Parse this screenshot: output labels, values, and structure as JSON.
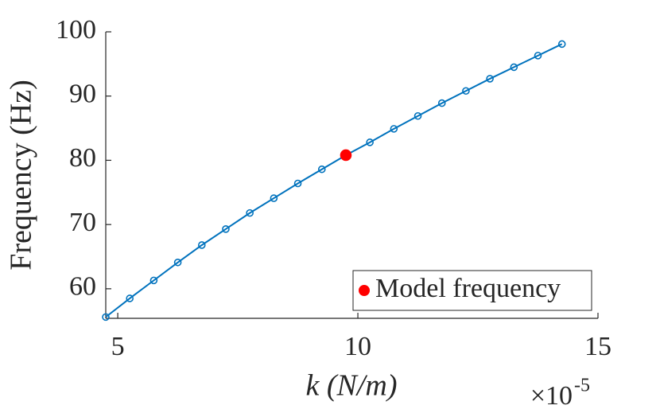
{
  "chart_data": {
    "type": "line",
    "xlabel": "k (N/m)",
    "ylabel": "Frequency (Hz)",
    "x_multiplier": {
      "base": "×10",
      "exponent": "-5"
    },
    "series": [
      {
        "color": "#0072bd",
        "marker": "open-circle",
        "x": [
          4.75,
          5.25,
          5.75,
          6.25,
          6.75,
          7.25,
          7.75,
          8.25,
          8.75,
          9.25,
          9.75,
          10.25,
          10.75,
          11.25,
          11.75,
          12.25,
          12.75,
          13.25,
          13.75,
          14.25
        ],
        "values": [
          55.6,
          58.5,
          61.3,
          64.1,
          66.8,
          69.3,
          71.8,
          74.1,
          76.4,
          78.6,
          80.8,
          82.8,
          84.9,
          86.9,
          88.9,
          90.8,
          92.7,
          94.5,
          96.3,
          98.1
        ]
      },
      {
        "name": "Model frequency",
        "color": "#ff0000",
        "marker": "filled-circle",
        "x": [
          9.75
        ],
        "values": [
          80.8
        ]
      }
    ],
    "xlim": [
      4.75,
      15
    ],
    "xticks": [
      5,
      10,
      15
    ],
    "ylim": [
      55.4,
      100
    ],
    "yticks": [
      60,
      70,
      80,
      90,
      100
    ],
    "grid": false,
    "legend": "lower right"
  }
}
